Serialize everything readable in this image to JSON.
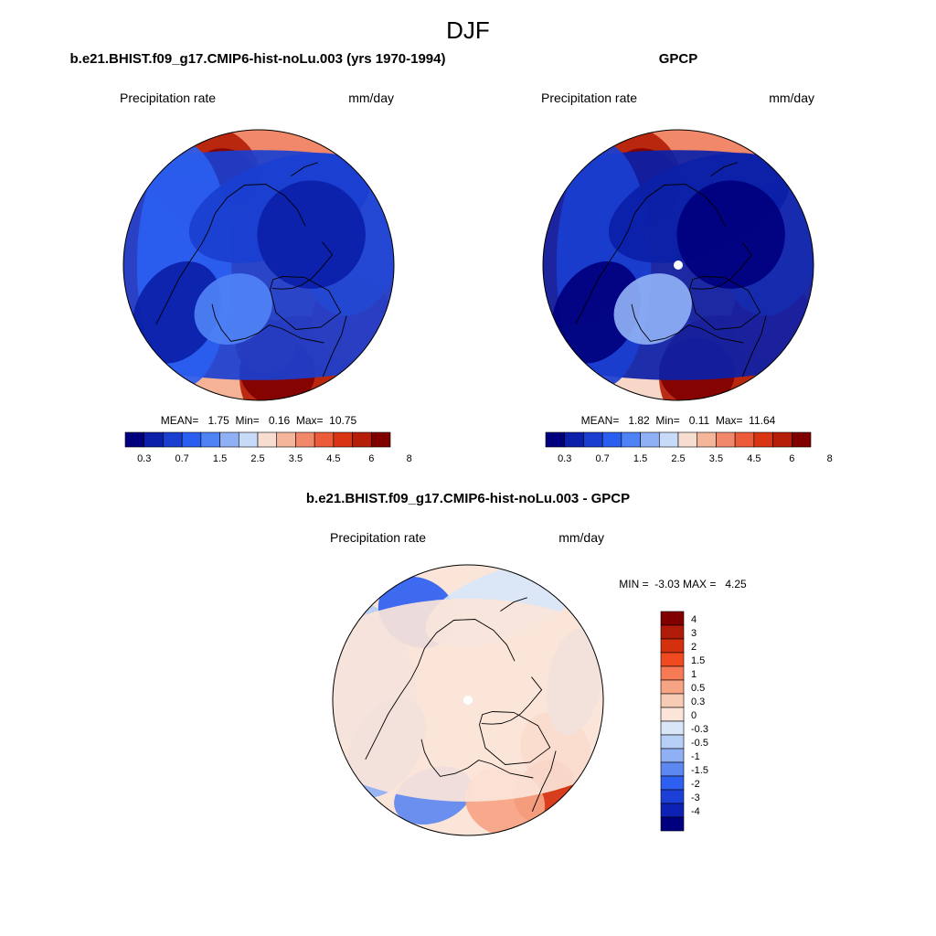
{
  "figure": {
    "season": "DJF"
  },
  "panels": [
    {
      "id": "model",
      "title": "b.e21.BHIST.f09_g17.CMIP6-hist-noLu.003 (yrs 1970-1994)",
      "left_label": "Precipitation rate",
      "right_label": "mm/day",
      "stats_text": "MEAN=   1.75  Min=   0.16  Max=  10.75",
      "stats": {
        "mean": 1.75,
        "min": 0.16,
        "max": 10.75
      },
      "colorbar_ticks": [
        "0.3",
        "0.7",
        "1.5",
        "2.5",
        "3.5",
        "4.5",
        "6",
        "8"
      ]
    },
    {
      "id": "obs",
      "title": "GPCP",
      "left_label": "Precipitation rate",
      "right_label": "mm/day",
      "stats_text": "MEAN=   1.82  Min=   0.11  Max=  11.64",
      "stats": {
        "mean": 1.82,
        "min": 0.11,
        "max": 11.64
      },
      "colorbar_ticks": [
        "0.3",
        "0.7",
        "1.5",
        "2.5",
        "3.5",
        "4.5",
        "6",
        "8"
      ]
    },
    {
      "id": "diff",
      "title": "b.e21.BHIST.f09_g17.CMIP6-hist-noLu.003 - GPCP",
      "left_label": "Precipitation rate",
      "right_label": "mm/day",
      "stats_text": "MIN =  -3.03 MAX =   4.25",
      "stats": {
        "min": -3.03,
        "max": 4.25
      },
      "colorbar_ticks": [
        "4",
        "3",
        "2",
        "1.5",
        "1",
        "0.5",
        "0.3",
        "0",
        "-0.3",
        "-0.5",
        "-1",
        "-1.5",
        "-2",
        "-3",
        "-4"
      ]
    }
  ],
  "palettes": {
    "abs": [
      "#00007e",
      "#0b1fa8",
      "#1a3fd0",
      "#2a5ef0",
      "#4f82f5",
      "#8fb0f5",
      "#c7daf7",
      "#f6ddd0",
      "#f5b59a",
      "#f2886a",
      "#ec5b3a",
      "#d93514",
      "#b51e08",
      "#800000"
    ],
    "diff": [
      "#800000",
      "#b01a08",
      "#d5300d",
      "#f24a20",
      "#f57a55",
      "#f7a485",
      "#f8cbb5",
      "#fbe5d9",
      "#d8e6f8",
      "#b7cef6",
      "#8fb0f4",
      "#5d88f0",
      "#2d5ff0",
      "#1c3fd8",
      "#0d22b4",
      "#00007e"
    ]
  },
  "map_regions": {
    "model": {
      "background_level": 9,
      "blobs": [
        {
          "lon": 100,
          "lat": 58,
          "w": 58,
          "h": 22,
          "level": 10
        },
        {
          "lon": 150,
          "lat": 60,
          "w": 40,
          "h": 15,
          "level": 12
        },
        {
          "lon": 160,
          "lat": 62,
          "w": 24,
          "h": 8,
          "level": 13
        },
        {
          "lon": 20,
          "lat": 62,
          "w": 40,
          "h": 18,
          "level": 8
        },
        {
          "lon": 340,
          "lat": 55,
          "w": 44,
          "h": 18,
          "level": 12
        },
        {
          "lon": 350,
          "lat": 58,
          "w": 28,
          "h": 10,
          "level": 13
        },
        {
          "lon": 300,
          "lat": 58,
          "w": 30,
          "h": 12,
          "level": 11
        },
        {
          "lon": 355,
          "lat": 66,
          "w": 22,
          "h": 8,
          "level": 12
        },
        {
          "lon": 260,
          "lat": 62,
          "w": 50,
          "h": 14,
          "level": 5
        },
        {
          "lon": 0,
          "lat": 90,
          "w": 200,
          "h": 34,
          "level": 2
        },
        {
          "lon": 90,
          "lat": 68,
          "w": 90,
          "h": 14,
          "level": 3
        },
        {
          "lon": 200,
          "lat": 72,
          "w": 70,
          "h": 14,
          "level": 2
        },
        {
          "lon": 60,
          "lat": 62,
          "w": 40,
          "h": 12,
          "level": 1
        },
        {
          "lon": 240,
          "lat": 72,
          "w": 40,
          "h": 16,
          "level": 1
        },
        {
          "lon": 30,
          "lat": 75,
          "w": 30,
          "h": 10,
          "level": 4
        }
      ]
    },
    "obs": {
      "background_level": 9,
      "blobs": [
        {
          "lon": 100,
          "lat": 58,
          "w": 58,
          "h": 22,
          "level": 10
        },
        {
          "lon": 150,
          "lat": 60,
          "w": 40,
          "h": 15,
          "level": 12
        },
        {
          "lon": 160,
          "lat": 62,
          "w": 24,
          "h": 8,
          "level": 13
        },
        {
          "lon": 20,
          "lat": 62,
          "w": 40,
          "h": 18,
          "level": 7
        },
        {
          "lon": 340,
          "lat": 55,
          "w": 44,
          "h": 18,
          "level": 12
        },
        {
          "lon": 350,
          "lat": 58,
          "w": 28,
          "h": 10,
          "level": 13
        },
        {
          "lon": 300,
          "lat": 58,
          "w": 30,
          "h": 12,
          "level": 11
        },
        {
          "lon": 260,
          "lat": 62,
          "w": 50,
          "h": 14,
          "level": 5
        },
        {
          "lon": 0,
          "lat": 90,
          "w": 200,
          "h": 34,
          "level": 1
        },
        {
          "lon": 90,
          "lat": 68,
          "w": 90,
          "h": 14,
          "level": 2
        },
        {
          "lon": 200,
          "lat": 72,
          "w": 70,
          "h": 14,
          "level": 1
        },
        {
          "lon": 60,
          "lat": 62,
          "w": 40,
          "h": 12,
          "level": 0
        },
        {
          "lon": 240,
          "lat": 72,
          "w": 40,
          "h": 16,
          "level": 0
        },
        {
          "lon": 30,
          "lat": 75,
          "w": 30,
          "h": 10,
          "level": 5
        }
      ]
    },
    "diff": {
      "background_level": 7,
      "blobs": [
        {
          "lon": 0,
          "lat": 78,
          "w": 360,
          "h": 16,
          "level": 7
        },
        {
          "lon": 100,
          "lat": 60,
          "w": 60,
          "h": 14,
          "level": 9
        },
        {
          "lon": 150,
          "lat": 60,
          "w": 30,
          "h": 10,
          "level": 12
        },
        {
          "lon": 300,
          "lat": 60,
          "w": 30,
          "h": 10,
          "level": 4
        },
        {
          "lon": 320,
          "lat": 55,
          "w": 20,
          "h": 10,
          "level": 2
        },
        {
          "lon": 60,
          "lat": 62,
          "w": 40,
          "h": 10,
          "level": 10
        },
        {
          "lon": 20,
          "lat": 60,
          "w": 30,
          "h": 8,
          "level": 11
        },
        {
          "lon": 200,
          "lat": 60,
          "w": 60,
          "h": 10,
          "level": 8
        },
        {
          "lon": 260,
          "lat": 58,
          "w": 40,
          "h": 8,
          "level": 10
        },
        {
          "lon": 340,
          "lat": 58,
          "w": 30,
          "h": 10,
          "level": 5
        },
        {
          "lon": 0,
          "lat": 90,
          "w": 140,
          "h": 30,
          "level": 7
        }
      ]
    }
  }
}
